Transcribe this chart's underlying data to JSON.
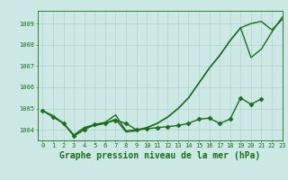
{
  "background_color": "#cce8e4",
  "grid_color": "#aacfcb",
  "line_color": "#1e6b1e",
  "title": "Graphe pression niveau de la mer (hPa)",
  "xlim": [
    -0.5,
    23
  ],
  "ylim": [
    1003.5,
    1009.6
  ],
  "yticks": [
    1004,
    1005,
    1006,
    1007,
    1008,
    1009
  ],
  "xticks": [
    0,
    1,
    2,
    3,
    4,
    5,
    6,
    7,
    8,
    9,
    10,
    11,
    12,
    13,
    14,
    15,
    16,
    17,
    18,
    19,
    20,
    21,
    22,
    23
  ],
  "series": [
    {
      "x": [
        0,
        1,
        2,
        3,
        4,
        5,
        6,
        7,
        8,
        9,
        10,
        11,
        12,
        13,
        14,
        15,
        16,
        17,
        18,
        19,
        20,
        21,
        22,
        23
      ],
      "y": [
        1004.9,
        1004.65,
        1004.3,
        1003.75,
        1004.1,
        1004.2,
        1004.3,
        1004.5,
        1003.9,
        1003.95,
        1004.1,
        1004.3,
        1004.6,
        1005.0,
        1005.5,
        1006.2,
        1006.9,
        1007.5,
        1008.2,
        1008.8,
        1009.0,
        1009.1,
        1008.7,
        1009.2
      ],
      "marker": null,
      "markersize": 0,
      "linewidth": 1.0
    },
    {
      "x": [
        0,
        1,
        2,
        3,
        4,
        5,
        6,
        7,
        8,
        9,
        10,
        11,
        12,
        13,
        14,
        15,
        16,
        17,
        18,
        19,
        20,
        21,
        22,
        23
      ],
      "y": [
        1004.9,
        1004.6,
        1004.3,
        1003.7,
        1004.0,
        1004.25,
        1004.3,
        1004.45,
        1004.3,
        1004.0,
        1004.05,
        1004.1,
        1004.15,
        1004.2,
        1004.3,
        1004.5,
        1004.55,
        1004.3,
        1004.5,
        1005.5,
        1005.2,
        1005.45,
        null,
        null
      ],
      "marker": "D",
      "markersize": 2.5,
      "linewidth": 1.0
    },
    {
      "x": [
        0,
        1,
        2,
        3,
        4,
        5,
        6,
        7,
        8,
        9,
        10,
        11,
        12,
        13,
        14,
        15,
        16,
        17,
        18,
        19,
        20,
        21,
        22,
        23
      ],
      "y": [
        1004.9,
        1004.65,
        1004.3,
        1003.75,
        1004.1,
        1004.25,
        1004.35,
        1004.7,
        1003.95,
        1004.0,
        1004.1,
        1004.3,
        1004.6,
        1005.0,
        1005.5,
        1006.2,
        1006.9,
        1007.5,
        1008.2,
        1008.8,
        1007.4,
        1007.8,
        1008.6,
        1009.3
      ],
      "marker": null,
      "markersize": 0,
      "linewidth": 1.0
    }
  ],
  "title_fontsize": 7.0,
  "tick_fontsize": 5.0
}
